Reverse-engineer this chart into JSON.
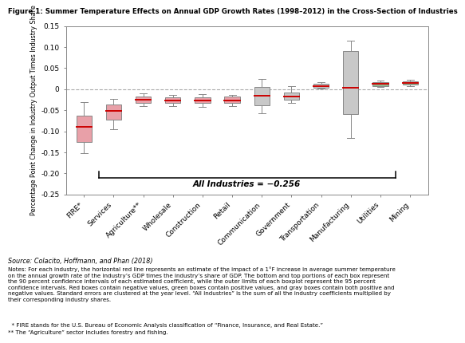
{
  "title": "Figure 1: Summer Temperature Effects on Annual GDP Growth Rates (1998–2012) in the Cross-Section of Industries",
  "ylabel": "Percentage Point Change in Industry Output Times Industry Share",
  "ylim": [
    -0.25,
    0.15
  ],
  "yticks": [
    -0.25,
    -0.2,
    -0.15,
    -0.1,
    -0.05,
    0,
    0.05,
    0.1,
    0.15
  ],
  "all_industries_label": "All Industries = −0.256",
  "source_text": "Source: Colacito, Hoffmann, and Phan (2018)",
  "notes_text": "Notes: For each industry, the horizontal red line represents an estimate of the impact of a 1°F increase in average summer temperature\non the annual growth rate of the industry’s GDP times the industry’s share of GDP. The bottom and top portions of each box represent\nthe 90 percent confidence intervals of each estimated coefficient, while the outer limits of each boxplot represent the 95 percent\nconfidence intervals. Red boxes contain negative values, green boxes contain positive values, and gray boxes contain both positive and\nnegative values. Standard errors are clustered at the year level. “All Industries” is the sum of all the industry coefficients multiplied by\ntheir corresponding industry shares.",
  "footnote1": "  * FIRE stands for the U.S. Bureau of Economic Analysis classification of “Finance, Insurance, and Real Estate.”",
  "footnote2": "** The “Agriculture” sector includes forestry and fishing.",
  "industries": [
    "FIRE*",
    "Services",
    "Agriculture**",
    "Wholesale",
    "Construction",
    "Retail",
    "Communication",
    "Government",
    "Transportation",
    "Manufacturing",
    "Utilities",
    "Mining"
  ],
  "box_colors": [
    "#e8a0a8",
    "#e8a0a8",
    "#e8a0a8",
    "#e8a0a8",
    "#e8a0a8",
    "#e8a0a8",
    "#c8c8c8",
    "#c8c8c8",
    "#c8c8c8",
    "#c8c8c8",
    "#90b890",
    "#90b890"
  ],
  "median": [
    -0.09,
    -0.052,
    -0.025,
    -0.027,
    -0.027,
    -0.026,
    -0.015,
    -0.017,
    0.007,
    0.003,
    0.012,
    0.015
  ],
  "q1_90": [
    -0.125,
    -0.072,
    -0.033,
    -0.033,
    -0.033,
    -0.032,
    -0.038,
    -0.025,
    0.004,
    -0.06,
    0.008,
    0.011
  ],
  "q3_90": [
    -0.063,
    -0.037,
    -0.017,
    -0.02,
    -0.019,
    -0.018,
    0.006,
    -0.007,
    0.012,
    0.09,
    0.017,
    0.019
  ],
  "whisker_low": [
    -0.152,
    -0.095,
    -0.04,
    -0.041,
    -0.042,
    -0.04,
    -0.058,
    -0.033,
    0.001,
    -0.115,
    0.005,
    0.007
  ],
  "whisker_high": [
    -0.03,
    -0.023,
    -0.01,
    -0.013,
    -0.012,
    -0.013,
    0.025,
    0.007,
    0.016,
    0.115,
    0.021,
    0.023
  ],
  "red_line_color": "#cc0000",
  "whisker_color": "#888888",
  "box_edge_color": "#888888",
  "zero_line_color": "#aaaaaa"
}
